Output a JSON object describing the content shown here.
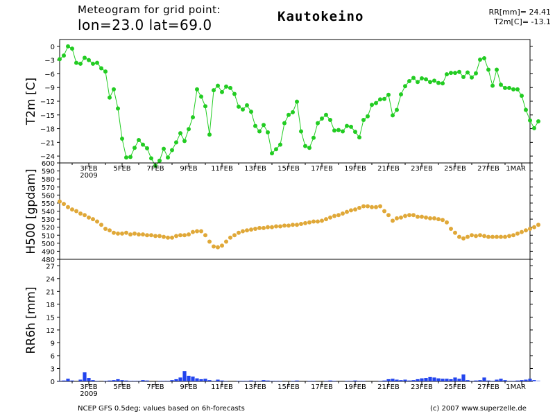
{
  "header": {
    "line1": "Meteogram for grid point:",
    "line2": "lon=23.0  lat=69.0",
    "location": "Kautokeino",
    "stat1": "RR[mm]=  24.41",
    "stat2": "T2m[C]=  -13.1"
  },
  "footer": {
    "source": "NCEP GFS 0.5deg; values based on 6h-forecasts",
    "copyright": "(c) 2007 www.superzelle.de"
  },
  "colors": {
    "temperature": "#22cc22",
    "geopotential": "#e0a838",
    "precipitation": "#2244ee",
    "axis": "#000000"
  },
  "chart_data": [
    {
      "type": "line",
      "title": "",
      "ylabel": "T2m [C]",
      "ylim": [
        -25.5,
        1.5
      ],
      "yticks": [
        0,
        -3,
        -6,
        -9,
        -12,
        -15,
        -18,
        -21,
        -24
      ],
      "ytick_labels": [
        "0",
        "−3",
        "−6",
        "−9",
        "−12",
        "−15",
        "−18",
        "−21",
        "−24"
      ],
      "x_start": "2009-02-01 06:00",
      "x_step_hours": 6,
      "xlim": [
        "2009-02-01 06:00",
        "2009-03-01 12:00"
      ],
      "xticks": [
        "3FEB",
        "5FEB",
        "7FEB",
        "9FEB",
        "11FEB",
        "13FEB",
        "15FEB",
        "17FEB",
        "19FEB",
        "21FEB",
        "23FEB",
        "25FEB",
        "27FEB",
        "1MAR"
      ],
      "xtick_sublabel": "2009",
      "grid": false,
      "series": [
        {
          "color": "#22cc22",
          "values": [
            -2.8,
            -2,
            0,
            -0.5,
            -3.6,
            -3.8,
            -2.5,
            -3,
            -3.8,
            -3.6,
            -4.8,
            -5.5,
            -11.2,
            -9.4,
            -13.6,
            -20.2,
            -24.3,
            -24.2,
            -22.2,
            -20.5,
            -21.5,
            -22.3,
            -24.5,
            -26.1,
            -25,
            -22.4,
            -24.3,
            -22.7,
            -21,
            -19,
            -20.7,
            -18.1,
            -15.5,
            -9.4,
            -11,
            -13.1,
            -19.3,
            -9.6,
            -8.6,
            -10,
            -8.8,
            -9.1,
            -10.4,
            -13.2,
            -13.8,
            -12.9,
            -14.3,
            -17.4,
            -18.6,
            -17.2,
            -18.8,
            -23.4,
            -22.5,
            -21.5,
            -16.8,
            -15,
            -14.4,
            -12.1,
            -18.6,
            -21.8,
            -22.2,
            -20,
            -16.8,
            -15.8,
            -15,
            -16.1,
            -18.4,
            -18.3,
            -18.6,
            -17.4,
            -17.6,
            -18.7,
            -19.9,
            -16.1,
            -15.3,
            -12.8,
            -12.4,
            -11.6,
            -11.5,
            -10.6,
            -15.1,
            -13.9,
            -10.5,
            -8.7,
            -7.6,
            -6.9,
            -7.8,
            -7,
            -7.2,
            -7.8,
            -7.5,
            -8,
            -8.1,
            -6.1,
            -5.8,
            -5.8,
            -5.6,
            -6.7,
            -5.7,
            -6.8,
            -5.9,
            -2.9,
            -2.6,
            -5.1,
            -8.6,
            -5.1,
            -8.4,
            -9.1,
            -9.1,
            -9.4,
            -9.4,
            -10.8,
            -13.9,
            -16.2,
            -17.9,
            -16.4
          ]
        }
      ]
    },
    {
      "type": "line",
      "title": "",
      "ylabel": "H500 [gpdam]",
      "ylim": [
        480,
        600
      ],
      "yticks": [
        480,
        490,
        500,
        510,
        520,
        530,
        540,
        550,
        560,
        570,
        580,
        590,
        600
      ],
      "ytick_labels": [
        "480",
        "490",
        "500",
        "510",
        "520",
        "530",
        "540",
        "550",
        "560",
        "570",
        "580",
        "590",
        "600"
      ],
      "x_start": "2009-02-01 06:00",
      "x_step_hours": 6,
      "grid": false,
      "series": [
        {
          "color": "#e0a838",
          "values": [
            552,
            549,
            545,
            542,
            540,
            537,
            535,
            532,
            530,
            527,
            523,
            518,
            516,
            513,
            512,
            512,
            513,
            511,
            512,
            511,
            511,
            510,
            510,
            509,
            509,
            508,
            507,
            507,
            509,
            510,
            510,
            511,
            514,
            515,
            515,
            510,
            502,
            496,
            495,
            497,
            502,
            507,
            510,
            513,
            515,
            516,
            517,
            518,
            519,
            519,
            520,
            520,
            521,
            521,
            522,
            522,
            523,
            523,
            524,
            525,
            526,
            527,
            527,
            528,
            530,
            532,
            534,
            535,
            537,
            539,
            541,
            542,
            544,
            546,
            546,
            545,
            545,
            546,
            540,
            535,
            528,
            531,
            532,
            534,
            535,
            535,
            533,
            533,
            532,
            531,
            531,
            530,
            529,
            526,
            518,
            513,
            508,
            506,
            508,
            510,
            509,
            510,
            509,
            508,
            508,
            508,
            508,
            508,
            509,
            510,
            512,
            514,
            516,
            518,
            520,
            523
          ]
        }
      ]
    },
    {
      "type": "bar",
      "title": "",
      "ylabel": "RR6h [mm]",
      "ylim": [
        0,
        28.5
      ],
      "yticks": [
        0,
        3,
        6,
        9,
        12,
        15,
        18,
        21,
        24,
        27
      ],
      "ytick_labels": [
        "0",
        "3",
        "6",
        "9",
        "12",
        "15",
        "18",
        "21",
        "24",
        "27"
      ],
      "x_start": "2009-02-01 06:00",
      "x_step_hours": 6,
      "xticks": [
        "3FEB",
        "5FEB",
        "7FEB",
        "9FEB",
        "11FEB",
        "13FEB",
        "15FEB",
        "17FEB",
        "19FEB",
        "21FEB",
        "23FEB",
        "25FEB",
        "27FEB",
        "1MAR"
      ],
      "xtick_sublabel": "2009",
      "grid": false,
      "series": [
        {
          "color": "#2244ee",
          "values": [
            0.1,
            0.2,
            0.6,
            0.2,
            0,
            0.4,
            2.1,
            0.8,
            0.3,
            0.1,
            0,
            0.1,
            0.2,
            0.3,
            0.5,
            0.3,
            0.2,
            0.1,
            0.1,
            0.1,
            0.3,
            0.2,
            0,
            0,
            0.1,
            0.1,
            0.1,
            0.3,
            0.5,
            0.9,
            2.4,
            1.3,
            1.1,
            0.7,
            0.5,
            0.6,
            0.3,
            0.1,
            0.4,
            0.2,
            0.1,
            0,
            0,
            0.1,
            0.1,
            0.1,
            0.2,
            0.1,
            0.1,
            0.3,
            0.2,
            0.1,
            0.1,
            0.1,
            0,
            0,
            0.1,
            0.2,
            0,
            0,
            0.1,
            0.1,
            0,
            0,
            0.1,
            0.2,
            0.1,
            0,
            0,
            0.1,
            0.1,
            0.2,
            0.1,
            0.1,
            0,
            0,
            0,
            0.1,
            0.2,
            0.5,
            0.6,
            0.4,
            0.3,
            0.4,
            0.2,
            0.3,
            0.5,
            0.7,
            0.8,
            1.0,
            0.9,
            0.7,
            0.6,
            0.6,
            0.5,
            0.9,
            0.6,
            1.6,
            0.3,
            0.1,
            0.2,
            0.3,
            0.9,
            0.2,
            0.1,
            0.4,
            0.6,
            0.3,
            0.1,
            0.1,
            0.2,
            0.3,
            0.4,
            0.6,
            0.3,
            0.1
          ]
        }
      ]
    }
  ]
}
